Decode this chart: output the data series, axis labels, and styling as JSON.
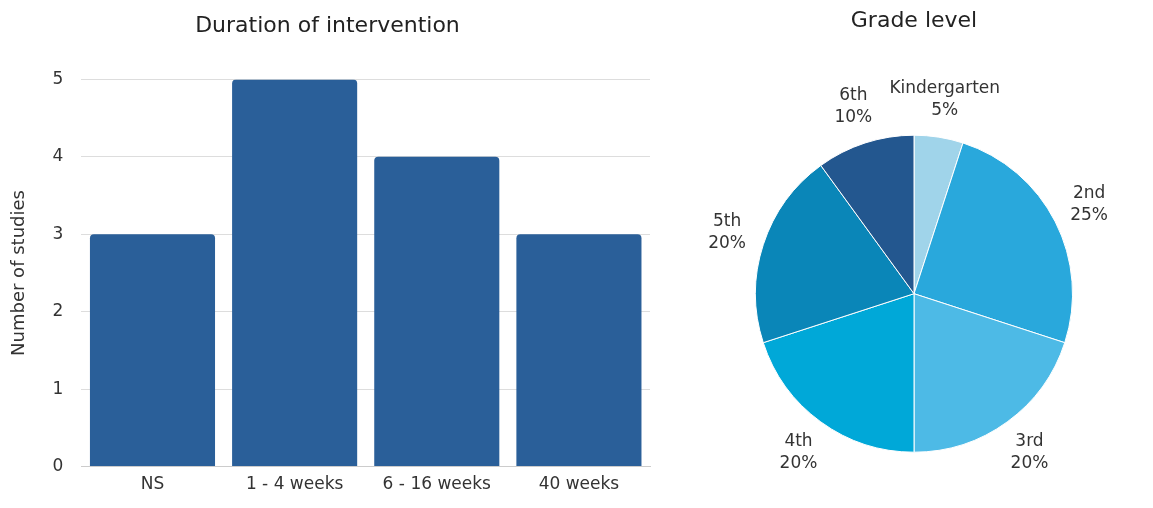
{
  "chart_data": [
    {
      "type": "bar",
      "title": "Duration of intervention",
      "ylabel": "Number of studies",
      "categories": [
        "NS",
        "1 - 4 weeks",
        "6 - 16 weeks",
        "40 weeks"
      ],
      "values": [
        3,
        5,
        4,
        3
      ],
      "color": "#2a5f99",
      "ylim": [
        0,
        5
      ],
      "yticks": [
        0,
        1,
        2,
        3,
        4,
        5
      ],
      "grid": "y",
      "legend": false
    },
    {
      "type": "pie",
      "title": "Grade level",
      "categories": [
        "Kindergarten",
        "2nd",
        "3rd",
        "4th",
        "5th",
        "6th"
      ],
      "values": [
        5,
        25,
        20,
        20,
        20,
        10
      ],
      "colors": [
        "#a0d4ea",
        "#29a8dc",
        "#4dbae6",
        "#00a8d8",
        "#0a86b8",
        "#23578f"
      ],
      "value_labels": [
        "5%",
        "25%",
        "20%",
        "20%",
        "20%",
        "10%"
      ],
      "legend": false
    }
  ]
}
